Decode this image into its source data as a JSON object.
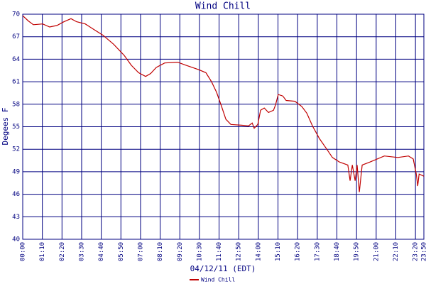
{
  "chart_data": {
    "type": "line",
    "title": "Wind Chill",
    "x_label": "04/12/11 (EDT)",
    "y_label": "Degees F",
    "xlim": [
      0,
      1430
    ],
    "ylim": [
      40,
      70
    ],
    "xticks": [
      {
        "value": 0,
        "label": "00:00"
      },
      {
        "value": 70,
        "label": "01:10"
      },
      {
        "value": 140,
        "label": "02:20"
      },
      {
        "value": 210,
        "label": "03:30"
      },
      {
        "value": 280,
        "label": "04:40"
      },
      {
        "value": 350,
        "label": "05:50"
      },
      {
        "value": 420,
        "label": "07:00"
      },
      {
        "value": 490,
        "label": "08:10"
      },
      {
        "value": 560,
        "label": "09:20"
      },
      {
        "value": 630,
        "label": "10:30"
      },
      {
        "value": 700,
        "label": "11:40"
      },
      {
        "value": 770,
        "label": "12:50"
      },
      {
        "value": 840,
        "label": "14:00"
      },
      {
        "value": 910,
        "label": "15:10"
      },
      {
        "value": 980,
        "label": "16:20"
      },
      {
        "value": 1050,
        "label": "17:30"
      },
      {
        "value": 1120,
        "label": "18:40"
      },
      {
        "value": 1190,
        "label": "19:50"
      },
      {
        "value": 1260,
        "label": "21:00"
      },
      {
        "value": 1330,
        "label": "22:10"
      },
      {
        "value": 1400,
        "label": "23:20"
      },
      {
        "value": 1430,
        "label": "23:50"
      }
    ],
    "yticks": [
      40,
      43,
      46,
      49,
      52,
      55,
      58,
      61,
      64,
      67,
      70
    ],
    "grid": true,
    "x": [
      0,
      20,
      38,
      71,
      96,
      122,
      147,
      172,
      192,
      223,
      248,
      286,
      324,
      362,
      387,
      413,
      438,
      456,
      476,
      506,
      552,
      582,
      628,
      653,
      673,
      691,
      709,
      724,
      742,
      780,
      805,
      818,
      825,
      838,
      848,
      861,
      876,
      894,
      901,
      911,
      927,
      939,
      970,
      995,
      1013,
      1033,
      1058,
      1084,
      1104,
      1129,
      1159,
      1167,
      1175,
      1185,
      1192,
      1200,
      1210,
      1238,
      1289,
      1337,
      1375,
      1392,
      1403,
      1408,
      1413,
      1430
    ],
    "series": [
      {
        "name": "Wind Chill",
        "color": "#c00000",
        "values": [
          69.8,
          69.1,
          68.6,
          68.7,
          68.3,
          68.5,
          69.0,
          69.4,
          69.0,
          68.7,
          68.1,
          67.2,
          66.0,
          64.5,
          63.2,
          62.2,
          61.7,
          62.1,
          62.9,
          63.5,
          63.6,
          63.2,
          62.6,
          62.2,
          61.0,
          59.6,
          57.7,
          56.0,
          55.3,
          55.2,
          55.1,
          55.5,
          54.8,
          55.3,
          57.2,
          57.5,
          56.9,
          57.2,
          57.9,
          59.3,
          59.1,
          58.5,
          58.4,
          57.7,
          56.8,
          55.1,
          53.4,
          52.0,
          50.9,
          50.3,
          49.9,
          47.8,
          49.9,
          47.8,
          49.9,
          46.3,
          49.9,
          50.3,
          51.1,
          50.9,
          51.1,
          50.7,
          48.7,
          47.1,
          48.7,
          48.4
        ]
      }
    ]
  }
}
